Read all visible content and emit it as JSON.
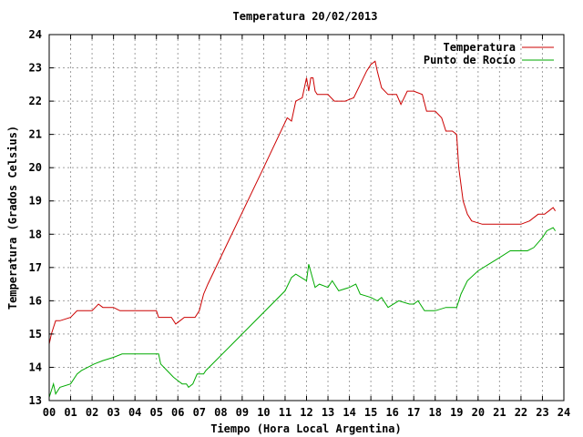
{
  "chart_data": {
    "type": "line",
    "title": "Temperatura 20/02/2013",
    "xlabel": "Tiempo (Hora Local Argentina)",
    "ylabel": "Temperatura (Grados Celsius)",
    "xlim": [
      0,
      24
    ],
    "ylim": [
      13,
      24
    ],
    "grid": true,
    "legend_position": "top-right",
    "x_tick_labels": [
      "00",
      "01",
      "02",
      "03",
      "04",
      "05",
      "06",
      "07",
      "08",
      "09",
      "10",
      "11",
      "12",
      "13",
      "14",
      "15",
      "16",
      "17",
      "18",
      "19",
      "20",
      "21",
      "22",
      "23",
      "24"
    ],
    "y_tick_labels": [
      "13",
      "14",
      "15",
      "16",
      "17",
      "18",
      "19",
      "20",
      "21",
      "22",
      "23",
      "24"
    ],
    "series": [
      {
        "name": "Temperatura",
        "color": "#cc0000",
        "points": [
          [
            0.0,
            14.7
          ],
          [
            0.1,
            15.0
          ],
          [
            0.2,
            15.2
          ],
          [
            0.3,
            15.4
          ],
          [
            0.5,
            15.4
          ],
          [
            1.0,
            15.5
          ],
          [
            1.3,
            15.7
          ],
          [
            2.0,
            15.7
          ],
          [
            2.3,
            15.9
          ],
          [
            2.5,
            15.8
          ],
          [
            3.0,
            15.8
          ],
          [
            3.3,
            15.7
          ],
          [
            5.0,
            15.7
          ],
          [
            5.1,
            15.5
          ],
          [
            5.7,
            15.5
          ],
          [
            5.9,
            15.3
          ],
          [
            6.1,
            15.4
          ],
          [
            6.3,
            15.5
          ],
          [
            6.8,
            15.5
          ],
          [
            7.0,
            15.7
          ],
          [
            7.2,
            16.2
          ],
          [
            7.4,
            16.5
          ],
          [
            10.0,
            20.0
          ],
          [
            11.1,
            21.5
          ],
          [
            11.3,
            21.4
          ],
          [
            11.5,
            22.0
          ],
          [
            11.8,
            22.1
          ],
          [
            12.0,
            22.7
          ],
          [
            12.1,
            22.3
          ],
          [
            12.2,
            22.7
          ],
          [
            12.3,
            22.7
          ],
          [
            12.4,
            22.3
          ],
          [
            12.5,
            22.2
          ],
          [
            13.0,
            22.2
          ],
          [
            13.3,
            22.0
          ],
          [
            13.8,
            22.0
          ],
          [
            14.2,
            22.1
          ],
          [
            14.5,
            22.5
          ],
          [
            14.8,
            22.9
          ],
          [
            15.0,
            23.1
          ],
          [
            15.2,
            23.2
          ],
          [
            15.3,
            22.9
          ],
          [
            15.5,
            22.4
          ],
          [
            15.8,
            22.2
          ],
          [
            16.2,
            22.2
          ],
          [
            16.4,
            21.9
          ],
          [
            16.7,
            22.3
          ],
          [
            17.0,
            22.3
          ],
          [
            17.4,
            22.2
          ],
          [
            17.6,
            21.7
          ],
          [
            18.0,
            21.7
          ],
          [
            18.3,
            21.5
          ],
          [
            18.5,
            21.1
          ],
          [
            18.8,
            21.1
          ],
          [
            19.0,
            21.0
          ],
          [
            19.1,
            20.0
          ],
          [
            19.3,
            19.0
          ],
          [
            19.5,
            18.6
          ],
          [
            19.7,
            18.4
          ],
          [
            20.2,
            18.3
          ],
          [
            20.5,
            18.3
          ],
          [
            21.0,
            18.3
          ],
          [
            21.2,
            18.3
          ],
          [
            21.5,
            18.3
          ],
          [
            22.0,
            18.3
          ],
          [
            22.4,
            18.4
          ],
          [
            22.8,
            18.6
          ],
          [
            23.1,
            18.6
          ],
          [
            23.3,
            18.7
          ],
          [
            23.5,
            18.8
          ],
          [
            23.6,
            18.7
          ]
        ]
      },
      {
        "name": "Punto de Rocío",
        "color": "#00aa00",
        "points": [
          [
            0.0,
            13.1
          ],
          [
            0.1,
            13.3
          ],
          [
            0.2,
            13.5
          ],
          [
            0.3,
            13.2
          ],
          [
            0.5,
            13.4
          ],
          [
            1.0,
            13.5
          ],
          [
            1.3,
            13.8
          ],
          [
            1.5,
            13.9
          ],
          [
            2.1,
            14.1
          ],
          [
            2.5,
            14.2
          ],
          [
            3.0,
            14.3
          ],
          [
            3.4,
            14.4
          ],
          [
            4.0,
            14.4
          ],
          [
            5.1,
            14.4
          ],
          [
            5.2,
            14.1
          ],
          [
            5.5,
            13.9
          ],
          [
            5.8,
            13.7
          ],
          [
            6.0,
            13.6
          ],
          [
            6.2,
            13.5
          ],
          [
            6.4,
            13.5
          ],
          [
            6.5,
            13.4
          ],
          [
            6.7,
            13.5
          ],
          [
            6.9,
            13.8
          ],
          [
            7.2,
            13.8
          ],
          [
            7.3,
            13.9
          ],
          [
            9.0,
            15.0
          ],
          [
            11.0,
            16.3
          ],
          [
            11.3,
            16.7
          ],
          [
            11.5,
            16.8
          ],
          [
            12.0,
            16.6
          ],
          [
            12.1,
            17.1
          ],
          [
            12.4,
            16.4
          ],
          [
            12.6,
            16.5
          ],
          [
            13.0,
            16.4
          ],
          [
            13.2,
            16.6
          ],
          [
            13.5,
            16.3
          ],
          [
            14.0,
            16.4
          ],
          [
            14.3,
            16.5
          ],
          [
            14.5,
            16.2
          ],
          [
            15.0,
            16.1
          ],
          [
            15.3,
            16.0
          ],
          [
            15.5,
            16.1
          ],
          [
            15.8,
            15.8
          ],
          [
            16.3,
            16.0
          ],
          [
            16.8,
            15.9
          ],
          [
            17.0,
            15.9
          ],
          [
            17.2,
            16.0
          ],
          [
            17.5,
            15.7
          ],
          [
            18.0,
            15.7
          ],
          [
            18.5,
            15.8
          ],
          [
            19.0,
            15.8
          ],
          [
            19.2,
            16.2
          ],
          [
            19.5,
            16.6
          ],
          [
            20.0,
            16.9
          ],
          [
            20.5,
            17.1
          ],
          [
            21.0,
            17.3
          ],
          [
            21.5,
            17.5
          ],
          [
            22.0,
            17.5
          ],
          [
            22.3,
            17.5
          ],
          [
            22.6,
            17.6
          ],
          [
            23.0,
            17.9
          ],
          [
            23.2,
            18.1
          ],
          [
            23.5,
            18.2
          ],
          [
            23.6,
            18.1
          ]
        ]
      }
    ]
  }
}
